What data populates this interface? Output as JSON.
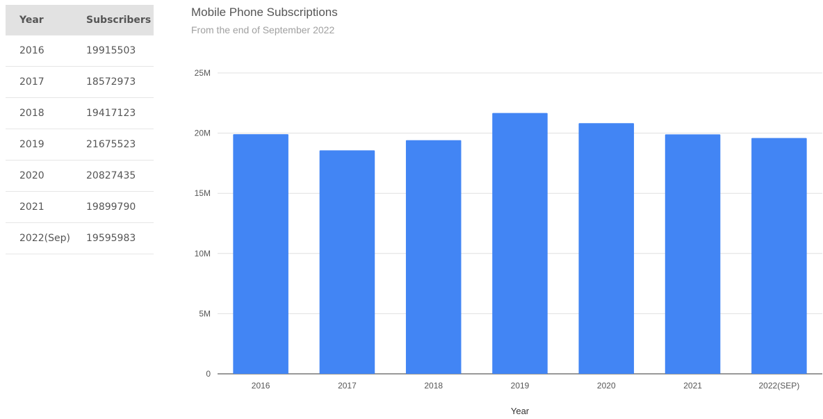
{
  "table": {
    "headers": [
      "Year",
      "Subscribers"
    ],
    "rows": [
      [
        "2016",
        "19915503"
      ],
      [
        "2017",
        "18572973"
      ],
      [
        "2018",
        "19417123"
      ],
      [
        "2019",
        "21675523"
      ],
      [
        "2020",
        "20827435"
      ],
      [
        "2021",
        "19899790"
      ],
      [
        "2022(Sep)",
        "19595983"
      ]
    ]
  },
  "chart_data": {
    "type": "bar",
    "title": "Mobile Phone Subscriptions",
    "subtitle": "From the end of September 2022",
    "xlabel": "Year",
    "ylabel": "",
    "categories": [
      "2016",
      "2017",
      "2018",
      "2019",
      "2020",
      "2021",
      "2022(SEP)"
    ],
    "values": [
      19915503,
      18572973,
      19417123,
      21675523,
      20827435,
      19899790,
      19595983
    ],
    "ylim": [
      0,
      25000000
    ],
    "yticks": [
      0,
      5000000,
      10000000,
      15000000,
      20000000,
      25000000
    ],
    "ytick_labels": [
      "0",
      "5M",
      "10M",
      "15M",
      "20M",
      "25M"
    ],
    "grid": true,
    "legend": "none",
    "bar_color": "#4285f4"
  }
}
